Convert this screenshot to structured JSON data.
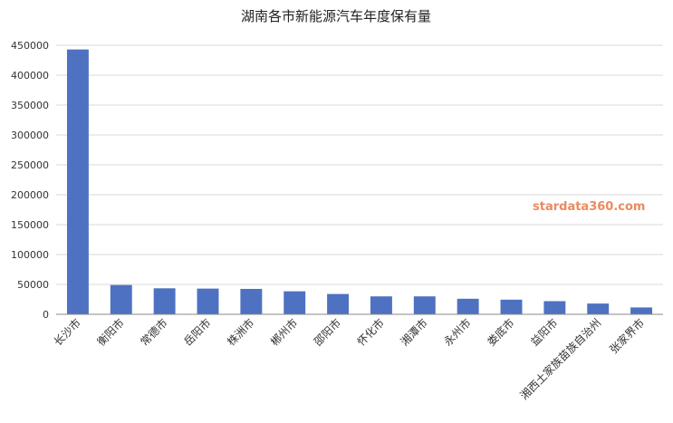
{
  "chart_data": {
    "type": "bar",
    "title": "湖南各市新能源汽车年度保有量",
    "xlabel": "",
    "ylabel": "",
    "ylim": [
      0,
      450000
    ],
    "yticks": [
      0,
      50000,
      100000,
      150000,
      200000,
      250000,
      300000,
      350000,
      400000,
      450000
    ],
    "grid": true,
    "categories": [
      "长沙市",
      "衡阳市",
      "常德市",
      "岳阳市",
      "株洲市",
      "郴州市",
      "邵阳市",
      "怀化市",
      "湘潭市",
      "永州市",
      "娄底市",
      "益阳市",
      "湘西土家族苗族自治州",
      "张家界市"
    ],
    "values": [
      443000,
      49000,
      43500,
      43000,
      42500,
      38500,
      34000,
      30000,
      30000,
      26000,
      24500,
      22000,
      18000,
      11500
    ],
    "color": "#4e72c1"
  },
  "watermark": "stardata360.com"
}
